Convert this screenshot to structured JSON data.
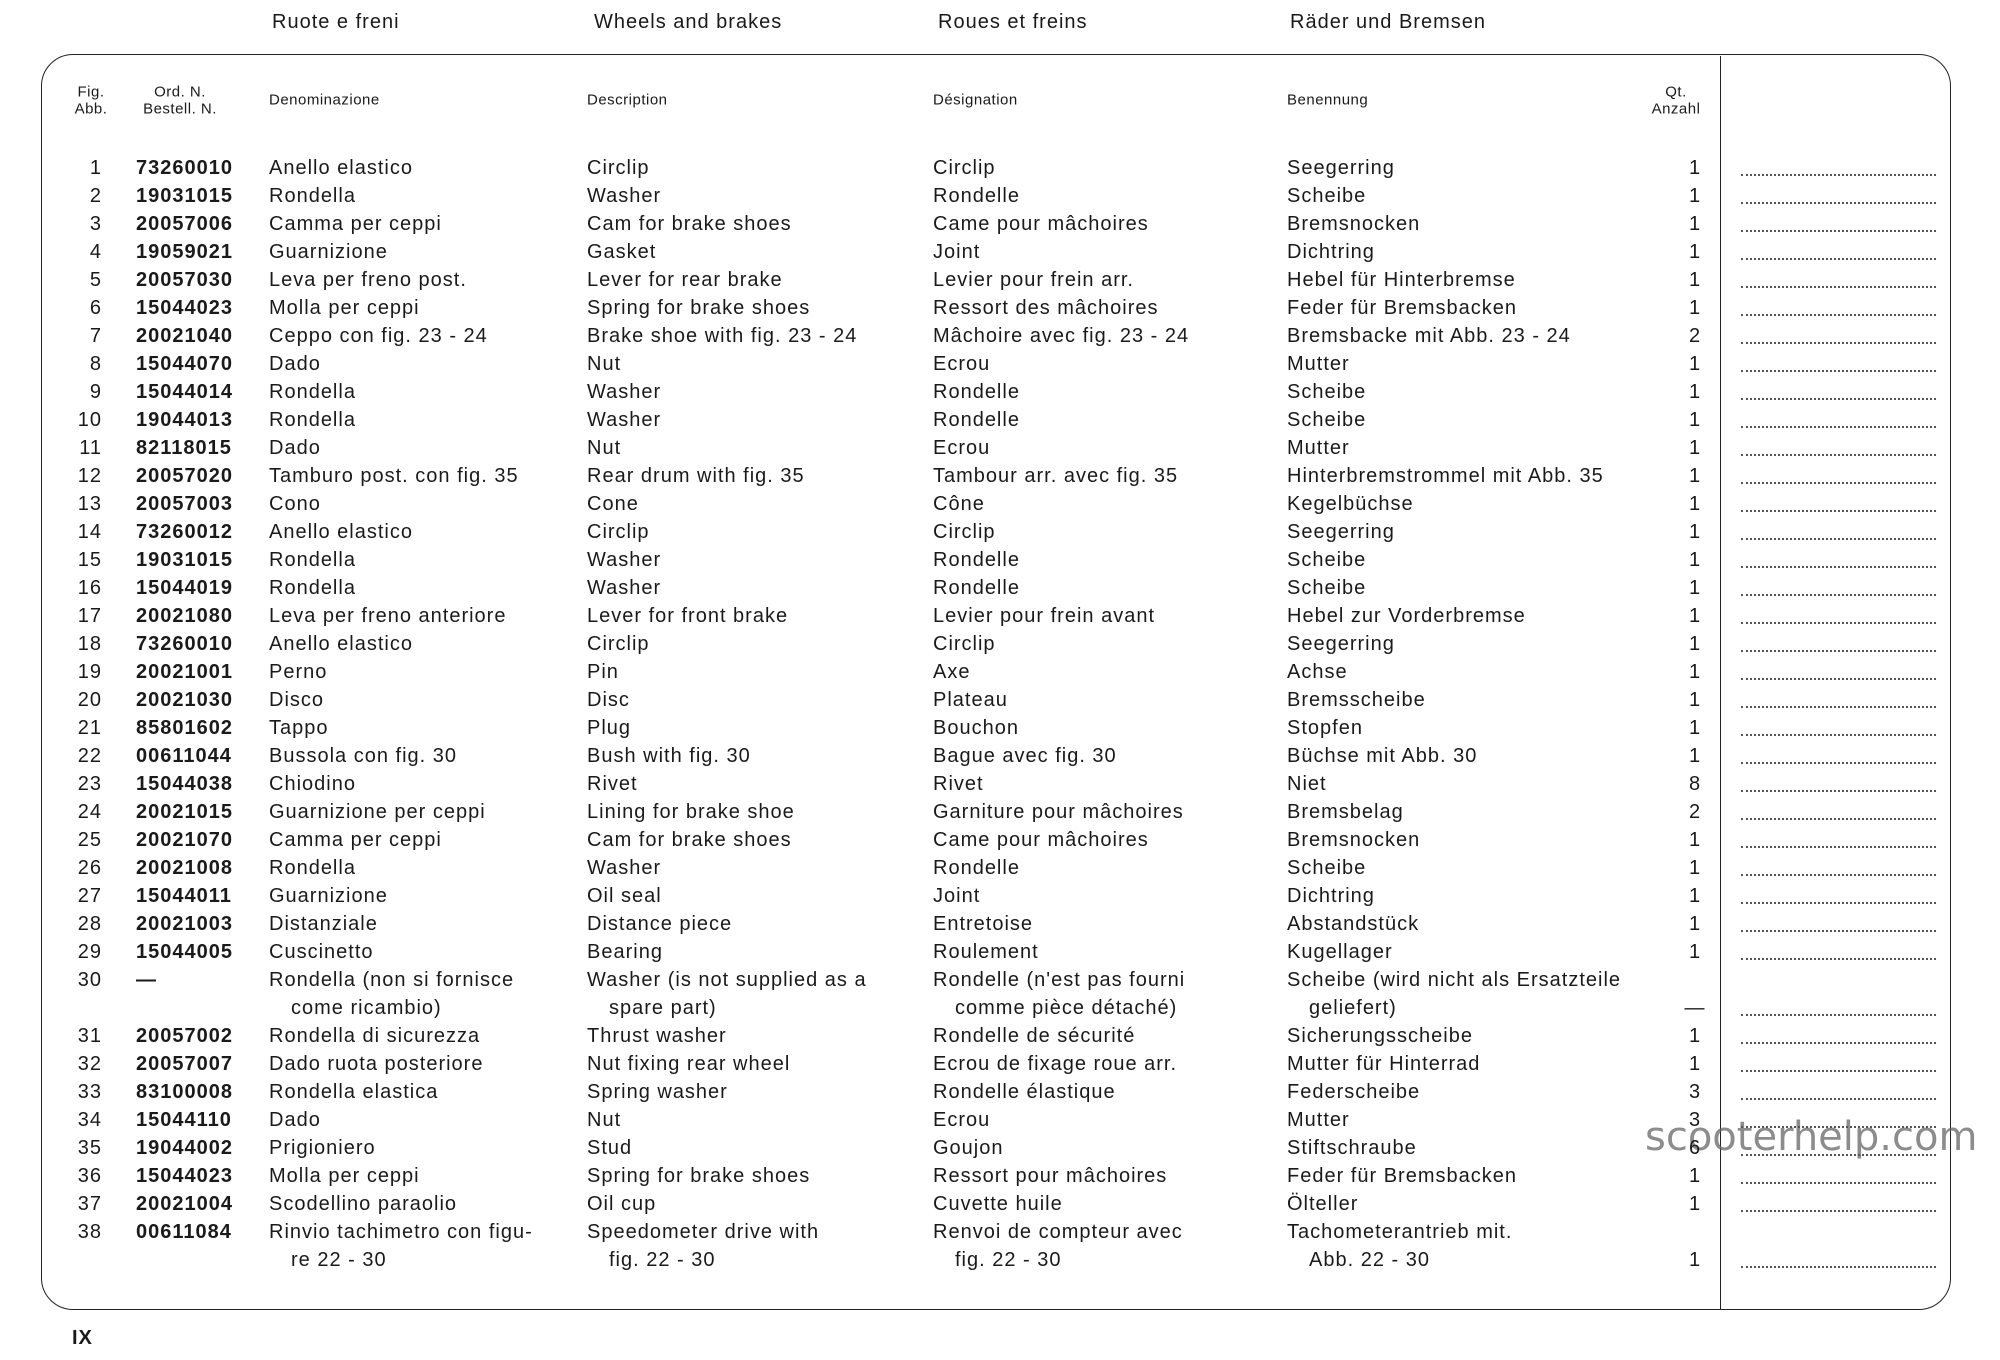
{
  "header": {
    "titles": [
      "Ruote e freni",
      "Wheels and brakes",
      "Roues et freins",
      "Räder und Bremsen"
    ]
  },
  "table": {
    "columns": [
      [
        "Fig.",
        "Abb."
      ],
      [
        "Ord. N.",
        "Bestell. N."
      ],
      [
        "Denominazione"
      ],
      [
        "Description"
      ],
      [
        "Désignation"
      ],
      [
        "Benennung"
      ],
      [
        "Qt.",
        "Anzahl"
      ]
    ],
    "rows": [
      [
        1,
        "73260010",
        "Anello elastico",
        "Circlip",
        "Circlip",
        "Seegerring",
        1
      ],
      [
        2,
        "19031015",
        "Rondella",
        "Washer",
        "Rondelle",
        "Scheibe",
        1
      ],
      [
        3,
        "20057006",
        "Camma per ceppi",
        "Cam for brake shoes",
        "Came pour mâchoires",
        "Bremsnocken",
        1
      ],
      [
        4,
        "19059021",
        "Guarnizione",
        "Gasket",
        "Joint",
        "Dichtring",
        1
      ],
      [
        5,
        "20057030",
        "Leva per freno post.",
        "Lever for rear brake",
        "Levier pour frein arr.",
        "Hebel für Hinterbremse",
        1
      ],
      [
        6,
        "15044023",
        "Molla per ceppi",
        "Spring for brake shoes",
        "Ressort des mâchoires",
        "Feder für Bremsbacken",
        1
      ],
      [
        7,
        "20021040",
        "Ceppo con fig. 23 - 24",
        "Brake shoe with fig. 23 - 24",
        "Mâchoire avec fig. 23 - 24",
        "Bremsbacke mit Abb. 23 - 24",
        2
      ],
      [
        8,
        "15044070",
        "Dado",
        "Nut",
        "Ecrou",
        "Mutter",
        1
      ],
      [
        9,
        "15044014",
        "Rondella",
        "Washer",
        "Rondelle",
        "Scheibe",
        1
      ],
      [
        10,
        "19044013",
        "Rondella",
        "Washer",
        "Rondelle",
        "Scheibe",
        1
      ],
      [
        11,
        "82118015",
        "Dado",
        "Nut",
        "Ecrou",
        "Mutter",
        1
      ],
      [
        12,
        "20057020",
        "Tamburo post. con fig. 35",
        "Rear drum with fig. 35",
        "Tambour arr. avec fig. 35",
        "Hinterbremstrommel mit Abb. 35",
        1
      ],
      [
        13,
        "20057003",
        "Cono",
        "Cone",
        "Cône",
        "Kegelbüchse",
        1
      ],
      [
        14,
        "73260012",
        "Anello elastico",
        "Circlip",
        "Circlip",
        "Seegerring",
        1
      ],
      [
        15,
        "19031015",
        "Rondella",
        "Washer",
        "Rondelle",
        "Scheibe",
        1
      ],
      [
        16,
        "15044019",
        "Rondella",
        "Washer",
        "Rondelle",
        "Scheibe",
        1
      ],
      [
        17,
        "20021080",
        "Leva per freno anteriore",
        "Lever for front brake",
        "Levier pour frein avant",
        "Hebel zur Vorderbremse",
        1
      ],
      [
        18,
        "73260010",
        "Anello elastico",
        "Circlip",
        "Circlip",
        "Seegerring",
        1
      ],
      [
        19,
        "20021001",
        "Perno",
        "Pin",
        "Axe",
        "Achse",
        1
      ],
      [
        20,
        "20021030",
        "Disco",
        "Disc",
        "Plateau",
        "Bremsscheibe",
        1
      ],
      [
        21,
        "85801602",
        "Tappo",
        "Plug",
        "Bouchon",
        "Stopfen",
        1
      ],
      [
        22,
        "00611044",
        "Bussola con fig. 30",
        "Bush with fig. 30",
        "Bague avec fig. 30",
        "Büchse mit Abb. 30",
        1
      ],
      [
        23,
        "15044038",
        "Chiodino",
        "Rivet",
        "Rivet",
        "Niet",
        8
      ],
      [
        24,
        "20021015",
        "Guarnizione per ceppi",
        "Lining for brake shoe",
        "Garniture pour mâchoires",
        "Bremsbelag",
        2
      ],
      [
        25,
        "20021070",
        "Camma per ceppi",
        "Cam for brake shoes",
        "Came pour mâchoires",
        "Bremsnocken",
        1
      ],
      [
        26,
        "20021008",
        "Rondella",
        "Washer",
        "Rondelle",
        "Scheibe",
        1
      ],
      [
        27,
        "15044011",
        "Guarnizione",
        "Oil seal",
        "Joint",
        "Dichtring",
        1
      ],
      [
        28,
        "20021003",
        "Distanziale",
        "Distance piece",
        "Entretoise",
        "Abstandstück",
        1
      ],
      [
        29,
        "15044005",
        "Cuscinetto",
        "Bearing",
        "Roulement",
        "Kugellager",
        1
      ],
      [
        30,
        "—",
        [
          "Rondella (non si fornisce",
          "come ricambio)"
        ],
        [
          "Washer (is not supplied as a",
          "spare part)"
        ],
        [
          "Rondelle (n'est pas fourni",
          "comme pièce détaché)"
        ],
        [
          "Scheibe (wird nicht als Ersatzteile",
          "geliefert)"
        ],
        "—"
      ],
      [
        31,
        "20057002",
        "Rondella di sicurezza",
        "Thrust washer",
        "Rondelle de sécurité",
        "Sicherungsscheibe",
        1
      ],
      [
        32,
        "20057007",
        "Dado ruota posteriore",
        "Nut fixing rear wheel",
        "Ecrou de fixage roue arr.",
        "Mutter für Hinterrad",
        1
      ],
      [
        33,
        "83100008",
        "Rondella elastica",
        "Spring washer",
        "Rondelle élastique",
        "Federscheibe",
        3
      ],
      [
        34,
        "15044110",
        "Dado",
        "Nut",
        "Ecrou",
        "Mutter",
        3
      ],
      [
        35,
        "19044002",
        "Prigioniero",
        "Stud",
        "Goujon",
        "Stiftschraube",
        6
      ],
      [
        36,
        "15044023",
        "Molla per ceppi",
        "Spring for brake shoes",
        "Ressort pour mâchoires",
        "Feder für Bremsbacken",
        1
      ],
      [
        37,
        "20021004",
        "Scodellino paraolio",
        "Oil cup",
        "Cuvette huile",
        "Ölteller",
        1
      ],
      [
        38,
        "00611084",
        [
          "Rinvio tachimetro con figu-",
          "re 22 - 30"
        ],
        [
          "Speedometer drive with",
          "fig. 22 - 30"
        ],
        [
          "Renvoi de compteur avec",
          "fig. 22 - 30"
        ],
        [
          "Tachometerantrieb mit.",
          "Abb. 22 - 30"
        ],
        1
      ]
    ]
  },
  "footer": {
    "page": "IX"
  },
  "watermark": "scooterhelp.com"
}
